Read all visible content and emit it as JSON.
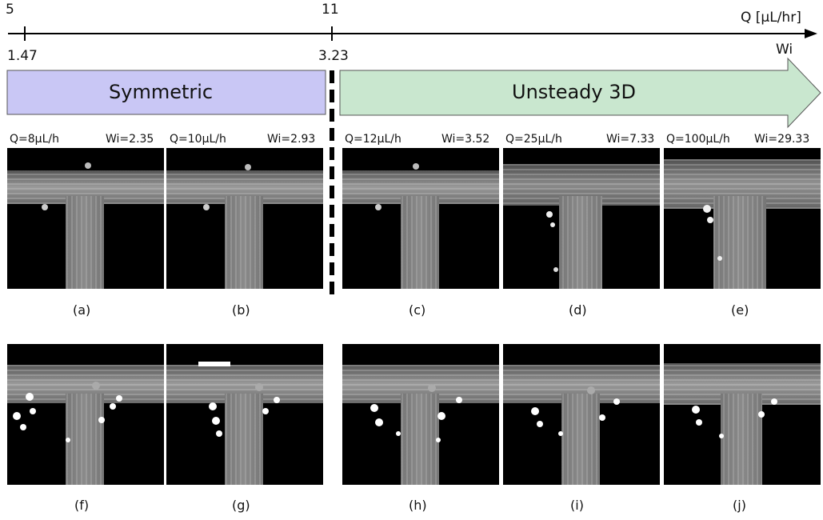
{
  "axis": {
    "q_label": "Q [μL/hr]",
    "wi_label": "Wi",
    "tick_left_q": "5",
    "tick_left_wi": "1.47",
    "tick_mid_q": "11",
    "tick_mid_wi": "3.23"
  },
  "regimes": {
    "symmetric": {
      "label": "Symmetric",
      "color": "#c9c7f5"
    },
    "unsteady": {
      "label": "Unsteady 3D",
      "color": "#c9e7cf"
    }
  },
  "captions": [
    {
      "q": "Q=8μL/h",
      "wi": "Wi=2.35"
    },
    {
      "q": "Q=10μL/h",
      "wi": "Wi=2.93"
    },
    {
      "q": "Q=12μL/h",
      "wi": "Wi=3.52"
    },
    {
      "q": "Q=25μL/h",
      "wi": "Wi=7.33"
    },
    {
      "q": "Q=100μL/h",
      "wi": "Wi=29.33"
    }
  ],
  "panel_labels_top": [
    "(a)",
    "(b)",
    "(c)",
    "(d)",
    "(e)"
  ],
  "panel_labels_bottom": [
    "(f)",
    "(g)",
    "(h)",
    "(i)",
    "(j)"
  ]
}
